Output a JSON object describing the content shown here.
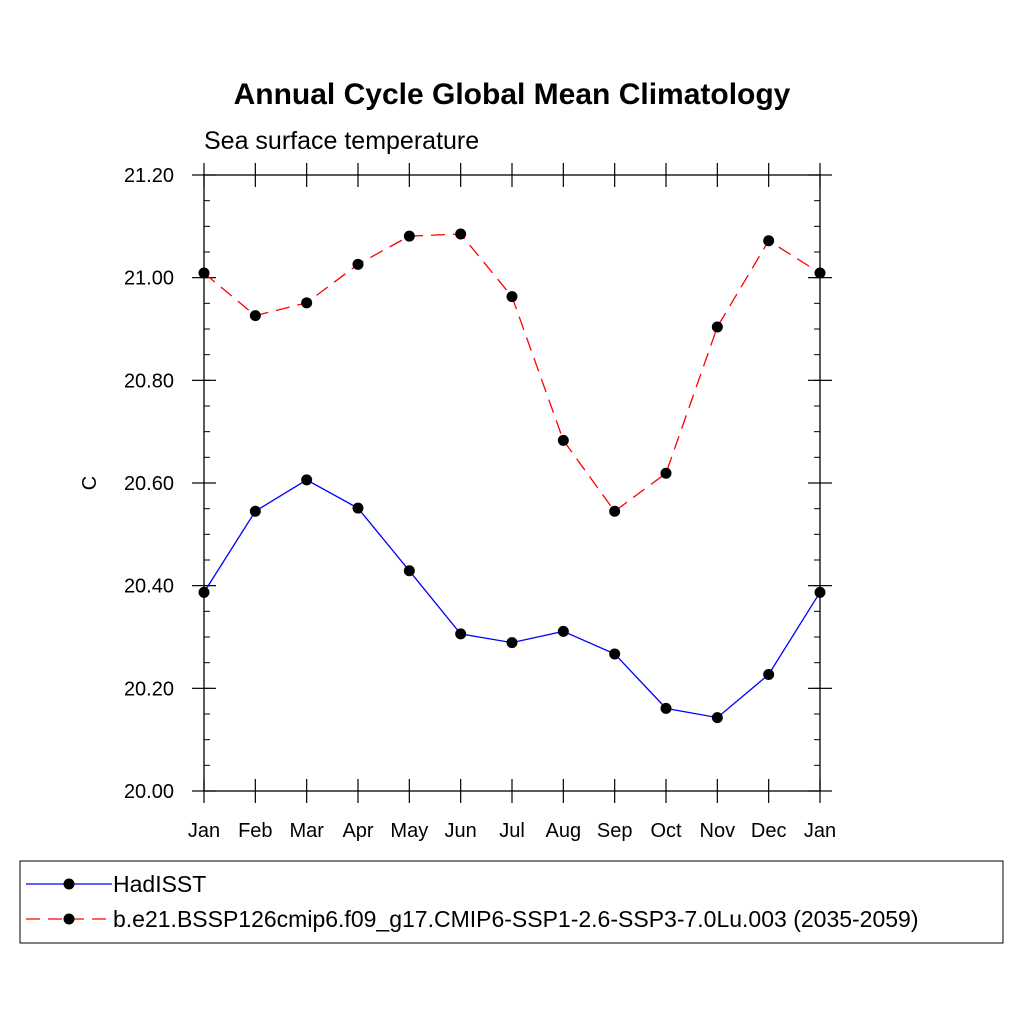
{
  "chart_data": {
    "type": "line",
    "title": "Annual Cycle Global Mean Climatology",
    "subtitle": "Sea surface temperature",
    "xlabel": "",
    "ylabel": "C",
    "categories": [
      "Jan",
      "Feb",
      "Mar",
      "Apr",
      "May",
      "Jun",
      "Jul",
      "Aug",
      "Sep",
      "Oct",
      "Nov",
      "Dec",
      "Jan"
    ],
    "ylim": [
      20.0,
      21.2
    ],
    "yticks": [
      20.0,
      20.2,
      20.4,
      20.6,
      20.8,
      21.0,
      21.2
    ],
    "ytick_labels": [
      "20.00",
      "20.20",
      "20.40",
      "20.60",
      "20.80",
      "21.00",
      "21.20"
    ],
    "grid": false,
    "legend_position": "bottom",
    "series": [
      {
        "name": "HadISST",
        "color": "#0000ff",
        "line_style": "solid",
        "marker": "filled-circle",
        "values": [
          20.387,
          20.545,
          20.606,
          20.551,
          20.429,
          20.306,
          20.289,
          20.311,
          20.267,
          20.161,
          20.143,
          20.227,
          20.387
        ]
      },
      {
        "name": "b.e21.BSSP126cmip6.f09_g17.CMIP6-SSP1-2.6-SSP3-7.0Lu.003 (2035-2059)",
        "color": "#ff0000",
        "line_style": "dashed",
        "marker": "filled-circle",
        "values": [
          21.009,
          20.926,
          20.951,
          21.026,
          21.081,
          21.085,
          20.963,
          20.683,
          20.545,
          20.619,
          20.904,
          21.072,
          21.009
        ]
      }
    ]
  }
}
